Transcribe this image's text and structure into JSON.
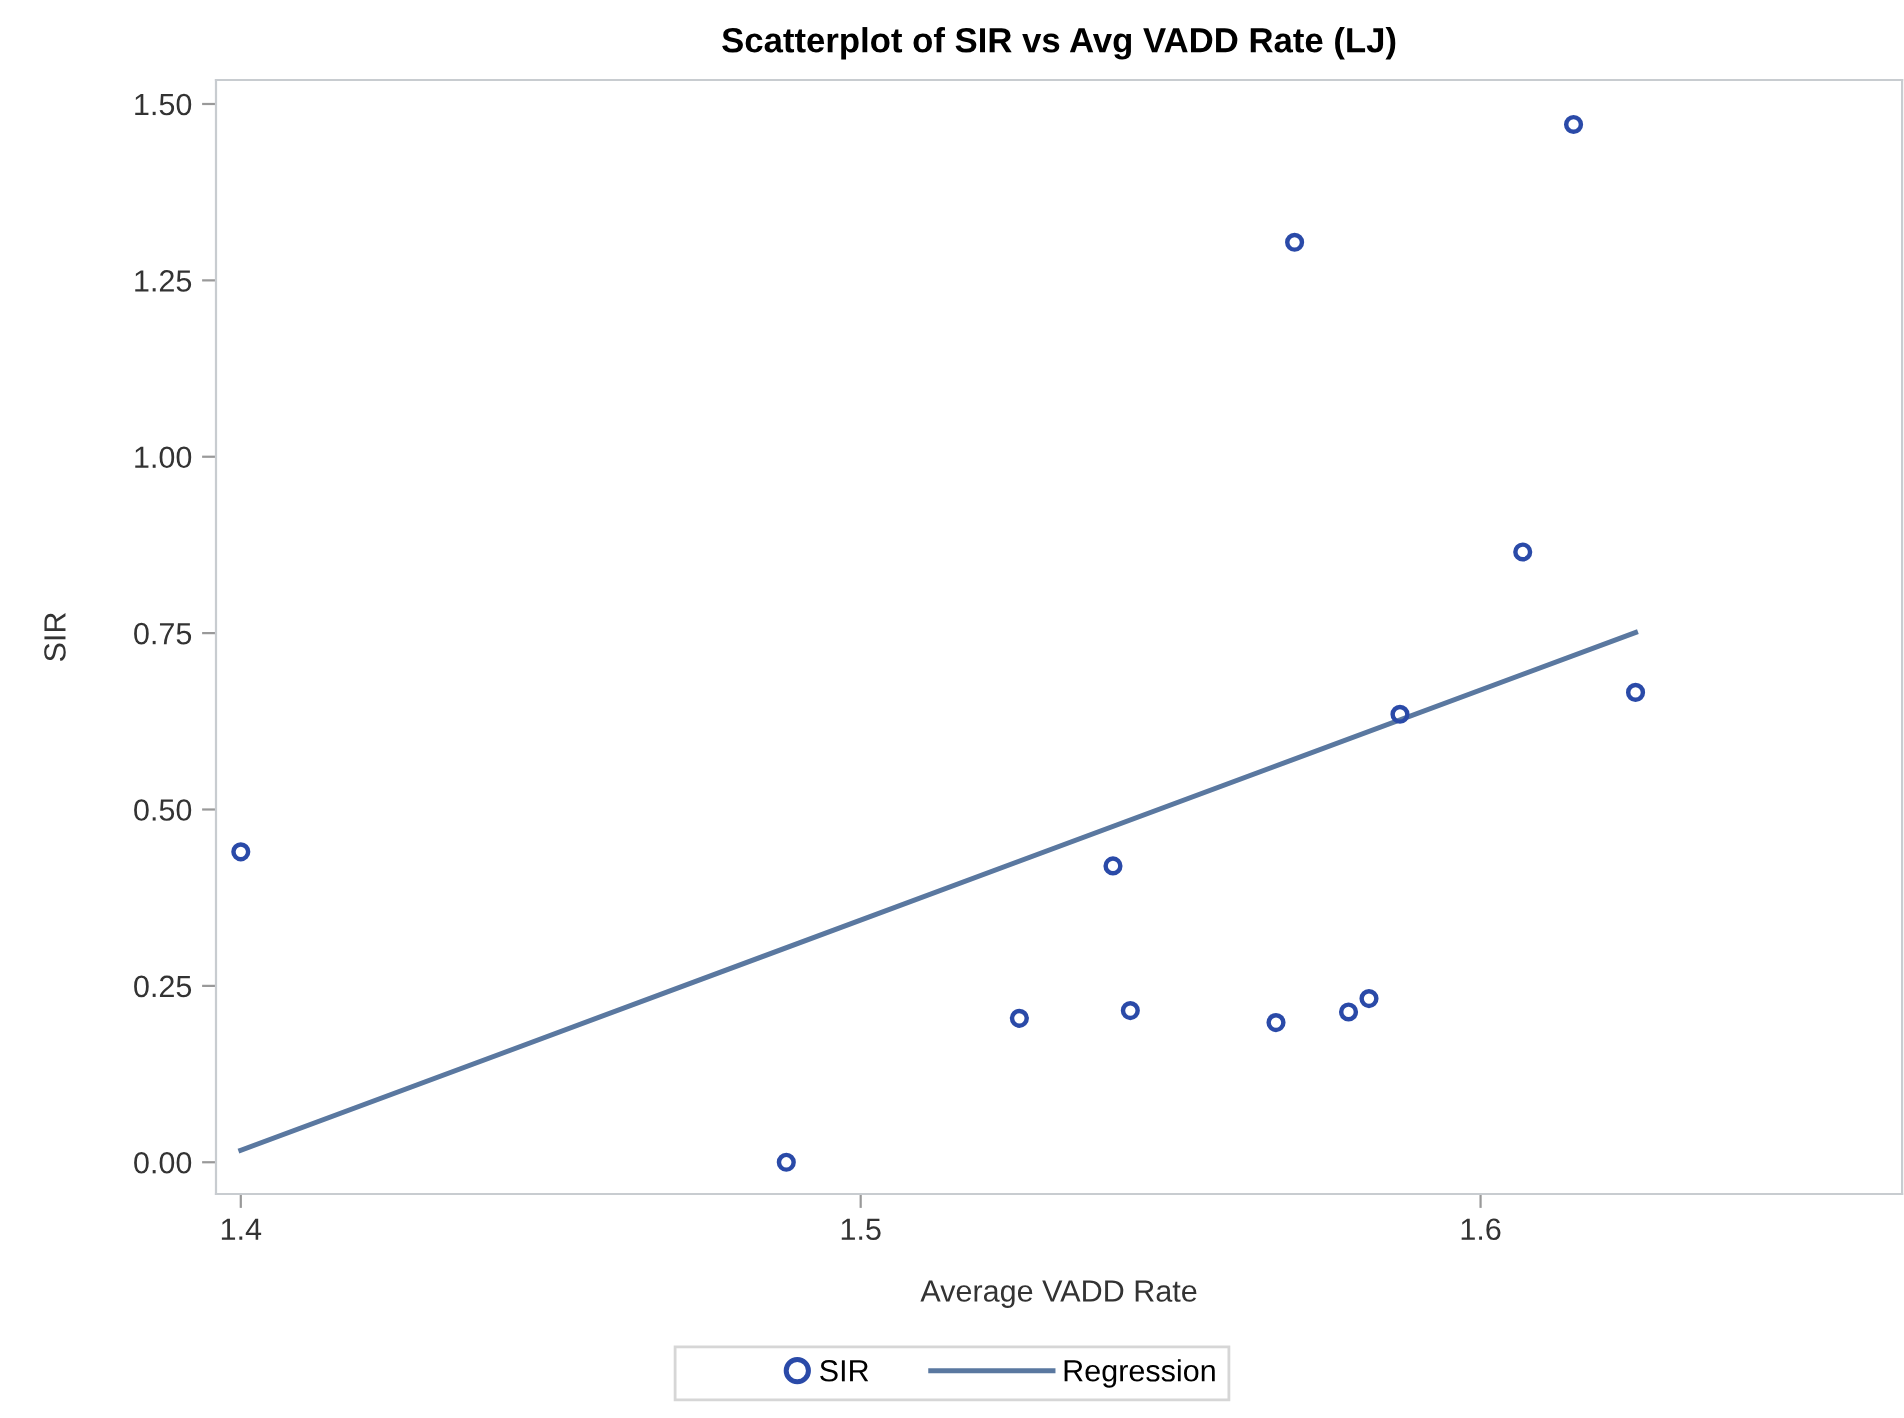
{
  "chart_data": {
    "type": "scatter",
    "title": "Scatterplot of SIR vs Avg VADD Rate (LJ)",
    "xlabel": "Average VADD Rate",
    "ylabel": "SIR",
    "series": [
      {
        "name": "SIR",
        "color": "#2a4aa8",
        "marker": "circle",
        "x": [
          1.4,
          1.488,
          1.5256,
          1.5407,
          1.5435,
          1.567,
          1.57,
          1.5787,
          1.582,
          1.587,
          1.6068,
          1.615,
          1.625
        ],
        "values": [
          0.44,
          0.0,
          0.204,
          0.42,
          0.215,
          0.198,
          1.304,
          0.213,
          0.232,
          0.635,
          0.865,
          1.471,
          0.666
        ]
      },
      {
        "name": "Regression",
        "type": "line",
        "color": "#5a78a0",
        "line_style": "solid",
        "x": [
          1.4,
          1.625
        ],
        "values": [
          0.017,
          0.751
        ]
      }
    ],
    "xlim": [
      1.396,
      1.668
    ],
    "ylim": [
      -0.045,
      1.534
    ],
    "xticks": [
      1.4,
      1.5,
      1.6
    ],
    "yticks": [
      {
        "value": 0,
        "label": "0.00"
      },
      {
        "value": 0.25,
        "label": "0.25"
      },
      {
        "value": 0.5,
        "label": "0.50"
      },
      {
        "value": 0.75,
        "label": "0.75"
      },
      {
        "value": 1.0,
        "label": "1.00"
      },
      {
        "value": 1.25,
        "label": "1.25"
      },
      {
        "value": 1.5,
        "label": "1.50"
      }
    ],
    "grid": false,
    "legend": "bottom"
  }
}
